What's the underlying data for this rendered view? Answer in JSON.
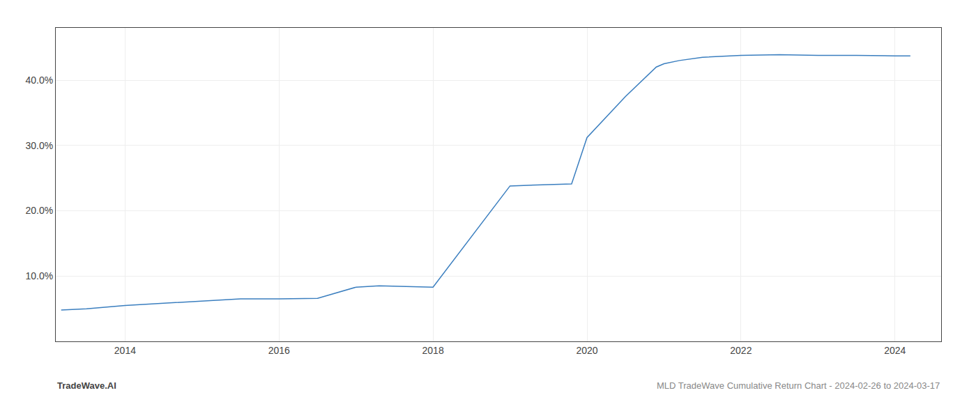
{
  "chart_data": {
    "type": "line",
    "x": [
      2013.17,
      2013.5,
      2014.0,
      2015.0,
      2015.5,
      2016.0,
      2016.5,
      2017.0,
      2017.3,
      2018.0,
      2018.5,
      2019.0,
      2019.5,
      2019.8,
      2020.0,
      2020.5,
      2020.9,
      2021.0,
      2021.2,
      2021.5,
      2022.0,
      2022.5,
      2023.0,
      2023.5,
      2024.0,
      2024.2
    ],
    "values": [
      4.8,
      5.0,
      5.5,
      6.2,
      6.5,
      6.5,
      6.6,
      8.3,
      8.5,
      8.3,
      16.0,
      23.8,
      24.0,
      24.1,
      31.2,
      37.5,
      42.0,
      42.5,
      43.0,
      43.5,
      43.8,
      43.9,
      43.8,
      43.8,
      43.7,
      43.7
    ],
    "color": "#3a7ebf",
    "xlim": [
      2013.1,
      2024.6
    ],
    "xticks": [
      2014,
      2016,
      2018,
      2020,
      2022,
      2024
    ],
    "ylim": [
      0,
      48
    ],
    "yticks": [
      {
        "value": 10.0,
        "label": "10.0%"
      },
      {
        "value": 20.0,
        "label": "20.0%"
      },
      {
        "value": 30.0,
        "label": "30.0%"
      },
      {
        "value": 40.0,
        "label": "40.0%"
      }
    ],
    "grid": true,
    "annotations": [
      "TradeWave.AI",
      "MLD TradeWave Cumulative Return Chart - 2024-02-26 to 2024-03-17"
    ]
  }
}
